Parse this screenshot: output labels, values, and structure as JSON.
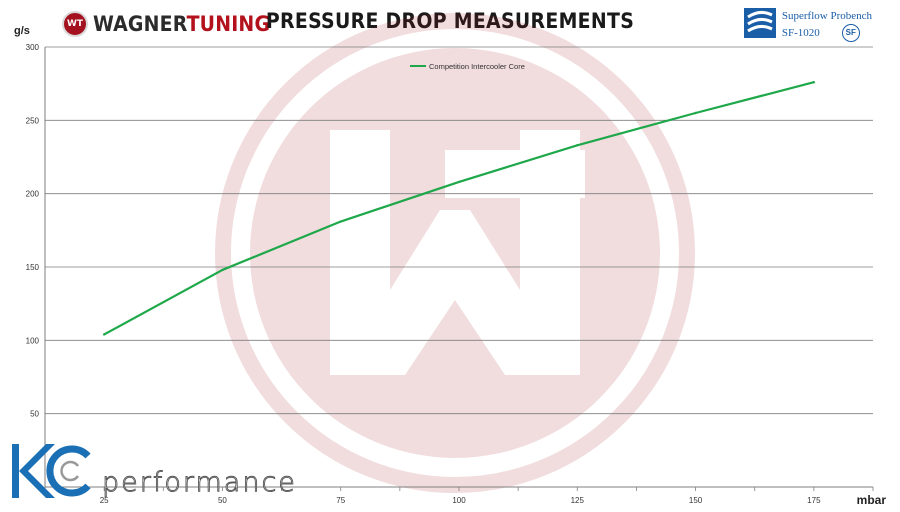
{
  "header": {
    "brand": {
      "emblem": "WT",
      "name_dark": "WAGNER",
      "name_red": "TUNING"
    },
    "title": "PRESSURE DROP MEASUREMENTS",
    "bench": {
      "name": "Superflow Probench",
      "model": "SF-1020",
      "badge": "SF"
    }
  },
  "footer": {
    "kc_letters": "KC",
    "kc_word": "performance"
  },
  "colors": {
    "line": "#1ea84a",
    "grid": "#7f7f7f",
    "watermark": "#a3121e",
    "brand_red": "#b3121d"
  },
  "chart_data": {
    "type": "line",
    "title": "PRESSURE DROP MEASUREMENTS",
    "xlabel": "mbar",
    "ylabel": "g/s",
    "x": [
      25,
      50,
      75,
      100,
      125,
      150,
      175
    ],
    "x_ticks": [
      "25",
      "50",
      "75",
      "100",
      "125",
      "150",
      "175"
    ],
    "y_ticks": [
      "50",
      "100",
      "150",
      "200",
      "250",
      "300"
    ],
    "xlim": [
      12.5,
      187.5
    ],
    "ylim": [
      0,
      300
    ],
    "grid": true,
    "legend_position": "top-center",
    "series": [
      {
        "name": "Competition Intercooler Core",
        "values": [
          104,
          148,
          181,
          208,
          233,
          255,
          276
        ]
      }
    ]
  }
}
